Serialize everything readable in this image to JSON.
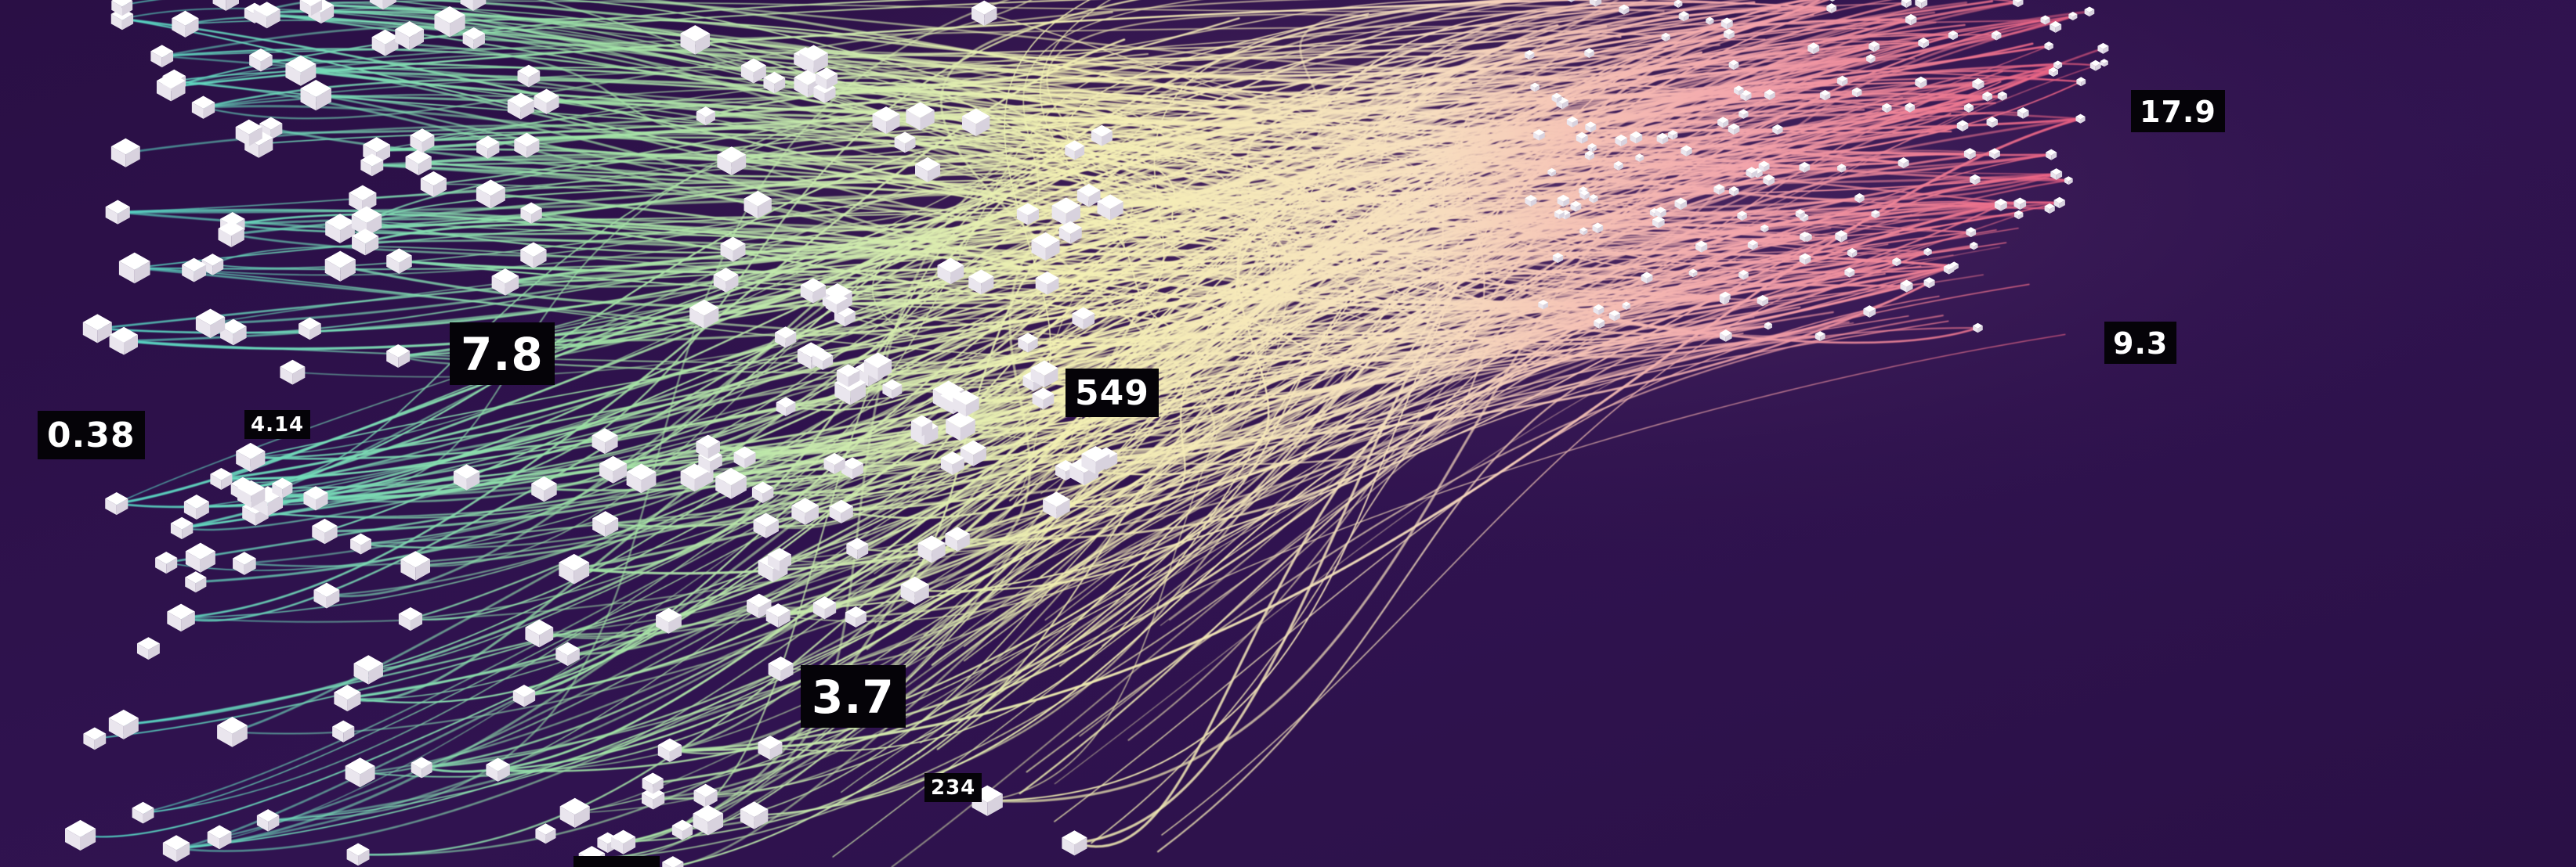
{
  "scene": {
    "description_type": "abstract data visualization",
    "background_color": "#2c1245",
    "gradient_colors": [
      "#4fd6c9",
      "#a8e6a0",
      "#f4f0b0",
      "#f6c8b0",
      "#ee6f8f"
    ]
  },
  "labels": {
    "l1": "0.38",
    "l2": "4.14",
    "l3": "7.8",
    "l4": "549",
    "l5": "3.7",
    "l6": "234",
    "l7": "17.9",
    "l8": "9.3"
  }
}
